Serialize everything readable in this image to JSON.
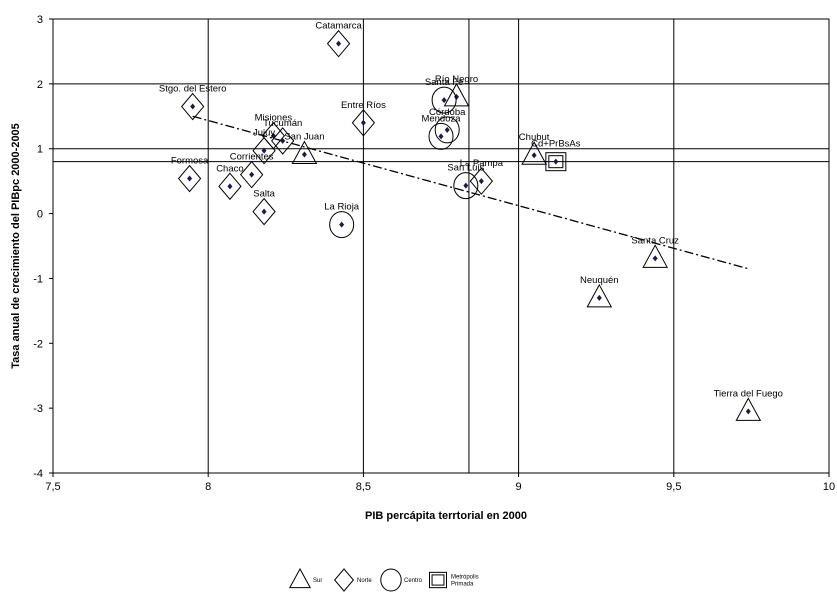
{
  "chart_data": {
    "type": "scatter",
    "title": "",
    "xlabel": "PIB percápita terrtorial en 2000",
    "ylabel": "Tasa anual de crecimiento del PIBpc 2000-2005",
    "xlim": [
      7.5,
      10
    ],
    "ylim": [
      -4,
      3
    ],
    "x_ticks": [
      "7,5",
      "8",
      "8,5",
      "9",
      "9,5",
      "10"
    ],
    "y_ticks": [
      "3",
      "2",
      "1",
      "0",
      "-1",
      "-2",
      "-3",
      "-4"
    ],
    "x_tick_values": [
      7.5,
      8,
      8.5,
      9,
      9.5,
      10
    ],
    "y_tick_values": [
      3,
      2,
      1,
      0,
      -1,
      -2,
      -3,
      -4
    ],
    "vertical_ref_lines": [
      8.0,
      8.5,
      8.84,
      9.0,
      9.5
    ],
    "horizontal_ref_lines": [
      2.0,
      1.0,
      0.8
    ],
    "trend_line": {
      "x1": 7.95,
      "y1": 1.5,
      "x2": 9.74,
      "y2": -0.85,
      "style": "dash-dot"
    },
    "points": [
      {
        "label": "Catamarca",
        "x": 8.42,
        "y": 2.62,
        "group": "Norte"
      },
      {
        "label": "Stgo. del Estero",
        "x": 7.95,
        "y": 1.65,
        "group": "Norte"
      },
      {
        "label": "Río Negro",
        "x": 8.8,
        "y": 1.8,
        "group": "Sur"
      },
      {
        "label": "Santa Fe",
        "x": 8.76,
        "y": 1.75,
        "group": "Centro"
      },
      {
        "label": "Entre Ríos",
        "x": 8.5,
        "y": 1.4,
        "group": "Norte"
      },
      {
        "label": "Córdoba",
        "x": 8.77,
        "y": 1.29,
        "group": "Centro"
      },
      {
        "label": "Mendoza",
        "x": 8.75,
        "y": 1.19,
        "group": "Centro"
      },
      {
        "label": "Misiones",
        "x": 8.21,
        "y": 1.2,
        "group": "Norte"
      },
      {
        "label": "Tucumán",
        "x": 8.24,
        "y": 1.12,
        "group": "Norte"
      },
      {
        "label": "Jujuy",
        "x": 8.18,
        "y": 0.97,
        "group": "Norte"
      },
      {
        "label": "San Juan",
        "x": 8.31,
        "y": 0.91,
        "group": "Sur"
      },
      {
        "label": "Chubut",
        "x": 9.05,
        "y": 0.9,
        "group": "Sur"
      },
      {
        "label": "Cd+PrBsAs",
        "x": 9.12,
        "y": 0.8,
        "group": "Metrópolis Primada"
      },
      {
        "label": "Corrientes",
        "x": 8.14,
        "y": 0.6,
        "group": "Norte"
      },
      {
        "label": "Formosa",
        "x": 7.94,
        "y": 0.54,
        "group": "Norte"
      },
      {
        "label": "La Pampa",
        "x": 8.88,
        "y": 0.5,
        "group": "Norte"
      },
      {
        "label": "San Luis",
        "x": 8.83,
        "y": 0.43,
        "group": "Centro"
      },
      {
        "label": "Chaco",
        "x": 8.07,
        "y": 0.42,
        "group": "Norte"
      },
      {
        "label": "Salta",
        "x": 8.18,
        "y": 0.03,
        "group": "Norte"
      },
      {
        "label": "La Rioja",
        "x": 8.43,
        "y": -0.17,
        "group": "Centro"
      },
      {
        "label": "Santa Cruz",
        "x": 9.44,
        "y": -0.69,
        "group": "Sur"
      },
      {
        "label": "Neuquén",
        "x": 9.26,
        "y": -1.3,
        "group": "Sur"
      },
      {
        "label": "Tierra del Fuego",
        "x": 9.74,
        "y": -3.05,
        "group": "Sur"
      }
    ],
    "legend": {
      "placement": "bottom",
      "items": [
        {
          "shape": "triangle",
          "label": "Sur"
        },
        {
          "shape": "diamond",
          "label": "Norte"
        },
        {
          "shape": "circle",
          "label": "Centro"
        },
        {
          "shape": "square",
          "label": "Metrópolis Primada",
          "lines": [
            "Metrópolis",
            "Primada"
          ]
        }
      ]
    },
    "colors": {
      "marker": "#1a1a4e",
      "line": "#000000"
    }
  }
}
